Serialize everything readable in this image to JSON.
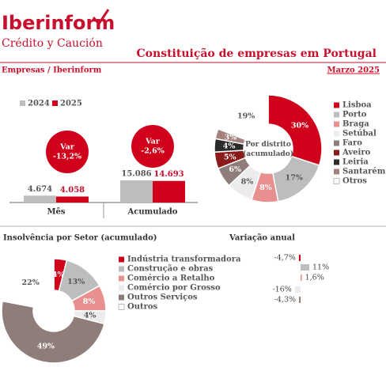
{
  "header": {
    "brand": "Iberinform",
    "tagline": "Crédito y Caución",
    "title": "Constituição de empresas em Portugal",
    "source": "Empresas / Iberinform",
    "date": "Marzo 2025"
  },
  "chart_data": [
    {
      "type": "bar",
      "categories": [
        "Mês",
        "Acumulado"
      ],
      "series": [
        {
          "name": "2024",
          "color": "#bdbdbd",
          "values": [
            4674,
            15086
          ],
          "value_labels": [
            "4.674",
            "15.086"
          ]
        },
        {
          "name": "2025",
          "color": "#d0021b",
          "values": [
            4058,
            14693
          ],
          "value_labels": [
            "4.058",
            "14.693"
          ]
        }
      ],
      "annotations": [
        [
          "Var",
          "-13,2%"
        ],
        [
          "Var",
          "-2,6%"
        ]
      ]
    },
    {
      "type": "donut",
      "title": "Por distrito (acumulado)",
      "categories": [
        "Lisboa",
        "Porto",
        "Braga",
        "Setúbal",
        "Faro",
        "Aveiro",
        "Leiria",
        "Santarém",
        "Otros"
      ],
      "values": [
        30,
        17,
        8,
        8,
        6,
        5,
        4,
        3,
        19
      ],
      "value_labels": [
        "30%",
        "17%",
        "8%",
        "8%",
        "6%",
        "5%",
        "4%",
        "3%",
        "19%"
      ],
      "colors": [
        "#d0021b",
        "#bdbdbd",
        "#e8908f",
        "#ececec",
        "#8f7d79",
        "#8b1a1a",
        "#2b2b2b",
        "#a3827d",
        "#ffffff"
      ]
    },
    {
      "type": "donut",
      "title": "Insolvência por Setor (acumulado)",
      "categories": [
        "Indústria transformadora",
        "Construção e obras",
        "Comércio a Retalho",
        "Comércio por Grosso",
        "Outros Serviços",
        "Outros"
      ],
      "values": [
        4,
        13,
        8,
        4,
        49,
        22
      ],
      "value_labels": [
        "4%",
        "13%",
        "8%",
        "4%",
        "49%",
        "22%"
      ],
      "colors": [
        "#d0021b",
        "#bdbdbd",
        "#e8908f",
        "#ececec",
        "#8f7d79",
        "#ffffff"
      ]
    },
    {
      "type": "hbar",
      "title": "Variação anual",
      "values": [
        -4.7,
        11,
        1.6,
        -16,
        -4.3
      ],
      "value_labels": [
        "-4,7%",
        "11%",
        "1,6%",
        "-16%",
        "-4,3%"
      ],
      "colors": [
        "#d0021b",
        "#bdbdbd",
        "#e8908f",
        "#ececec",
        "#8f7d79"
      ]
    }
  ]
}
